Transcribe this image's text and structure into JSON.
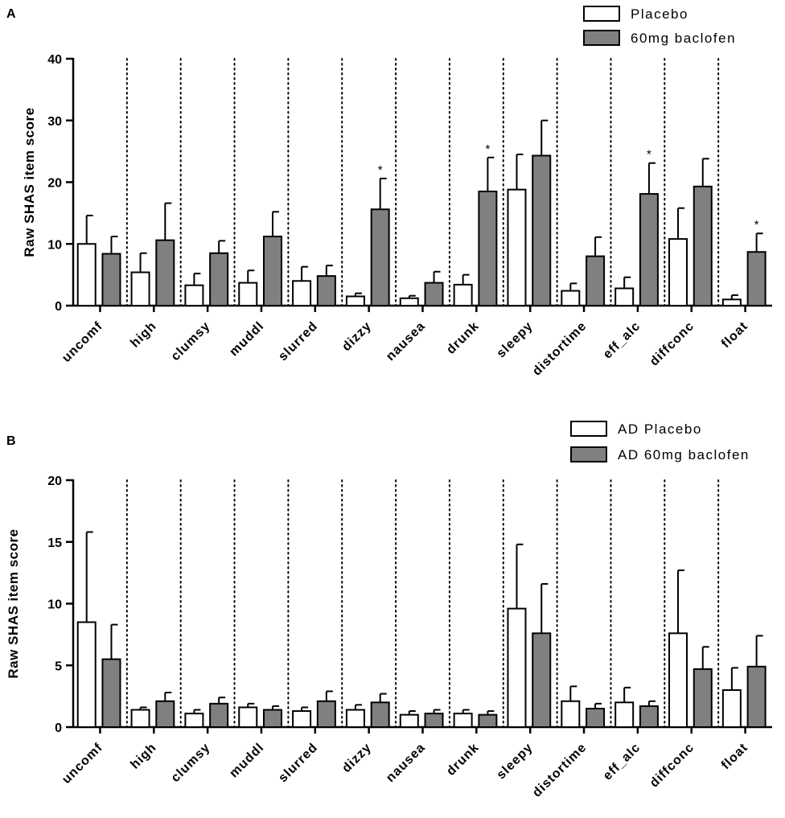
{
  "chart_data": [
    {
      "panel": "A",
      "type": "bar",
      "ylabel": "Raw SHAS item score",
      "ylim": [
        0,
        40
      ],
      "yticks": [
        0,
        10,
        20,
        30,
        40
      ],
      "categories": [
        "uncomf",
        "high",
        "clumsy",
        "muddl",
        "slurred",
        "dizzy",
        "nausea",
        "drunk",
        "sleepy",
        "distortime",
        "eff_alc",
        "diffconc",
        "float"
      ],
      "series": [
        {
          "name": "Placebo",
          "color": "#ffffff",
          "values": [
            10.0,
            5.4,
            3.3,
            3.7,
            4.0,
            1.5,
            1.2,
            3.4,
            18.8,
            2.4,
            2.8,
            10.8,
            1.0
          ],
          "errors": [
            4.6,
            3.1,
            1.9,
            2.0,
            2.3,
            0.5,
            0.4,
            1.6,
            5.7,
            1.2,
            1.8,
            5.0,
            0.7
          ]
        },
        {
          "name": "60mg baclofen",
          "color": "#808080",
          "values": [
            8.4,
            10.6,
            8.5,
            11.2,
            4.8,
            15.6,
            3.7,
            18.5,
            24.3,
            8.0,
            18.1,
            19.3,
            8.7
          ],
          "errors": [
            2.8,
            6.0,
            2.0,
            4.0,
            1.7,
            5.0,
            1.8,
            5.5,
            5.7,
            3.1,
            5.0,
            4.5,
            3.0
          ]
        }
      ],
      "significance": [
        "",
        "",
        "",
        "",
        "",
        "*",
        "",
        "*",
        "",
        "",
        "*",
        "",
        "*"
      ]
    },
    {
      "panel": "B",
      "type": "bar",
      "ylabel": "Raw SHAS item score",
      "ylim": [
        0,
        20
      ],
      "yticks": [
        0,
        5,
        10,
        15,
        20
      ],
      "categories": [
        "uncomf",
        "high",
        "clumsy",
        "muddl",
        "slurred",
        "dizzy",
        "nausea",
        "drunk",
        "sleepy",
        "distortime",
        "eff_alc",
        "diffconc",
        "float"
      ],
      "series": [
        {
          "name": "AD Placebo",
          "color": "#ffffff",
          "values": [
            8.5,
            1.4,
            1.1,
            1.6,
            1.3,
            1.4,
            1.0,
            1.1,
            9.6,
            2.1,
            2.0,
            7.6,
            3.0
          ],
          "errors": [
            7.3,
            0.2,
            0.3,
            0.3,
            0.3,
            0.4,
            0.3,
            0.3,
            5.2,
            1.2,
            1.2,
            5.1,
            1.8
          ]
        },
        {
          "name": "AD 60mg baclofen",
          "color": "#808080",
          "values": [
            5.5,
            2.1,
            1.9,
            1.4,
            2.1,
            2.0,
            1.1,
            1.0,
            7.6,
            1.5,
            1.7,
            4.7,
            4.9
          ],
          "errors": [
            2.8,
            0.7,
            0.5,
            0.3,
            0.8,
            0.7,
            0.3,
            0.3,
            4.0,
            0.4,
            0.4,
            1.8,
            2.5
          ]
        }
      ],
      "significance": [
        "",
        "",
        "",
        "",
        "",
        "",
        "",
        "",
        "",
        "",
        "",
        "",
        ""
      ]
    }
  ]
}
